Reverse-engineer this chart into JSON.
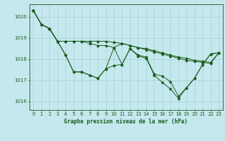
{
  "bg_color": "#c5e8ee",
  "grid_color": "#aad4da",
  "line_color": "#1a5c1a",
  "title": "Graphe pression niveau de la mer (hPa)",
  "ylim": [
    1015.6,
    1020.6
  ],
  "yticks": [
    1016,
    1017,
    1018,
    1019,
    1020
  ],
  "xlim": [
    -0.5,
    23.5
  ],
  "xticks": [
    0,
    1,
    2,
    3,
    4,
    5,
    6,
    7,
    8,
    9,
    10,
    11,
    12,
    13,
    14,
    15,
    16,
    17,
    18,
    19,
    20,
    21,
    22,
    23
  ],
  "series": [
    [
      1020.3,
      1019.65,
      1019.45,
      1018.85,
      1018.85,
      1018.85,
      1018.85,
      1018.85,
      1018.85,
      1018.85,
      1018.8,
      1018.75,
      1018.65,
      1018.55,
      1018.5,
      1018.4,
      1018.3,
      1018.2,
      1018.1,
      1018.05,
      1017.95,
      1017.9,
      1017.85,
      1018.3
    ],
    [
      1020.3,
      1019.65,
      1019.45,
      1018.85,
      1018.85,
      1018.85,
      1018.85,
      1018.75,
      1018.65,
      1018.65,
      1018.55,
      1018.75,
      1018.65,
      1018.55,
      1018.45,
      1018.35,
      1018.25,
      1018.15,
      1018.05,
      1017.95,
      1017.9,
      1017.85,
      1017.8,
      1018.3
    ],
    [
      1020.3,
      1019.65,
      1019.45,
      1018.85,
      1018.2,
      1017.4,
      1017.4,
      1017.25,
      1017.1,
      1017.55,
      1017.7,
      1017.75,
      1018.5,
      1018.2,
      1018.1,
      1017.3,
      1017.2,
      1016.95,
      1016.25,
      1016.65,
      1017.1,
      1017.75,
      1018.25,
      1018.3
    ],
    [
      1020.3,
      1019.65,
      1019.45,
      1018.85,
      1018.2,
      1017.4,
      1017.4,
      1017.25,
      1017.1,
      1017.55,
      1018.55,
      1017.75,
      1018.5,
      1018.15,
      1018.05,
      1017.25,
      1016.9,
      1016.6,
      1016.15,
      1016.65,
      1017.1,
      1017.75,
      1018.25,
      1018.3
    ]
  ]
}
